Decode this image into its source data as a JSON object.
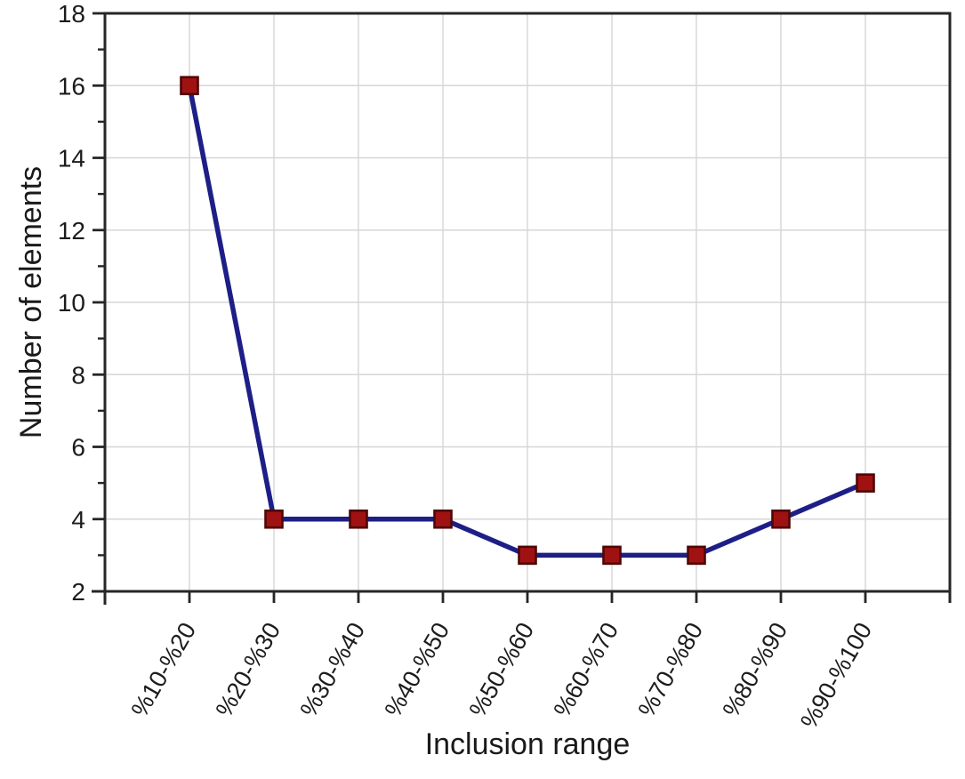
{
  "chart_data": {
    "type": "line",
    "title": "",
    "xlabel": "Inclusion range",
    "ylabel": "Number of elements",
    "categories": [
      "%10-%20",
      "%20-%30",
      "%30-%40",
      "%40-%50",
      "%50-%60",
      "%60-%70",
      "%70-%80",
      "%80-%90",
      "%90-%100"
    ],
    "values": [
      16,
      4,
      4,
      4,
      3,
      3,
      3,
      4,
      5
    ],
    "ylim": [
      2,
      18
    ],
    "yticks": [
      2,
      4,
      6,
      8,
      10,
      12,
      14,
      16,
      18
    ],
    "ytick_minor_step": 1,
    "grid": true,
    "legend": "none",
    "x_label_rotation_deg": -60,
    "colors": {
      "line": "#1e1e87",
      "marker_fill": "#a01212",
      "marker_edge": "#4f0707",
      "axis": "#262626",
      "grid": "#d6d6d6",
      "text": "#1c1c1c",
      "background": "#ffffff"
    }
  }
}
